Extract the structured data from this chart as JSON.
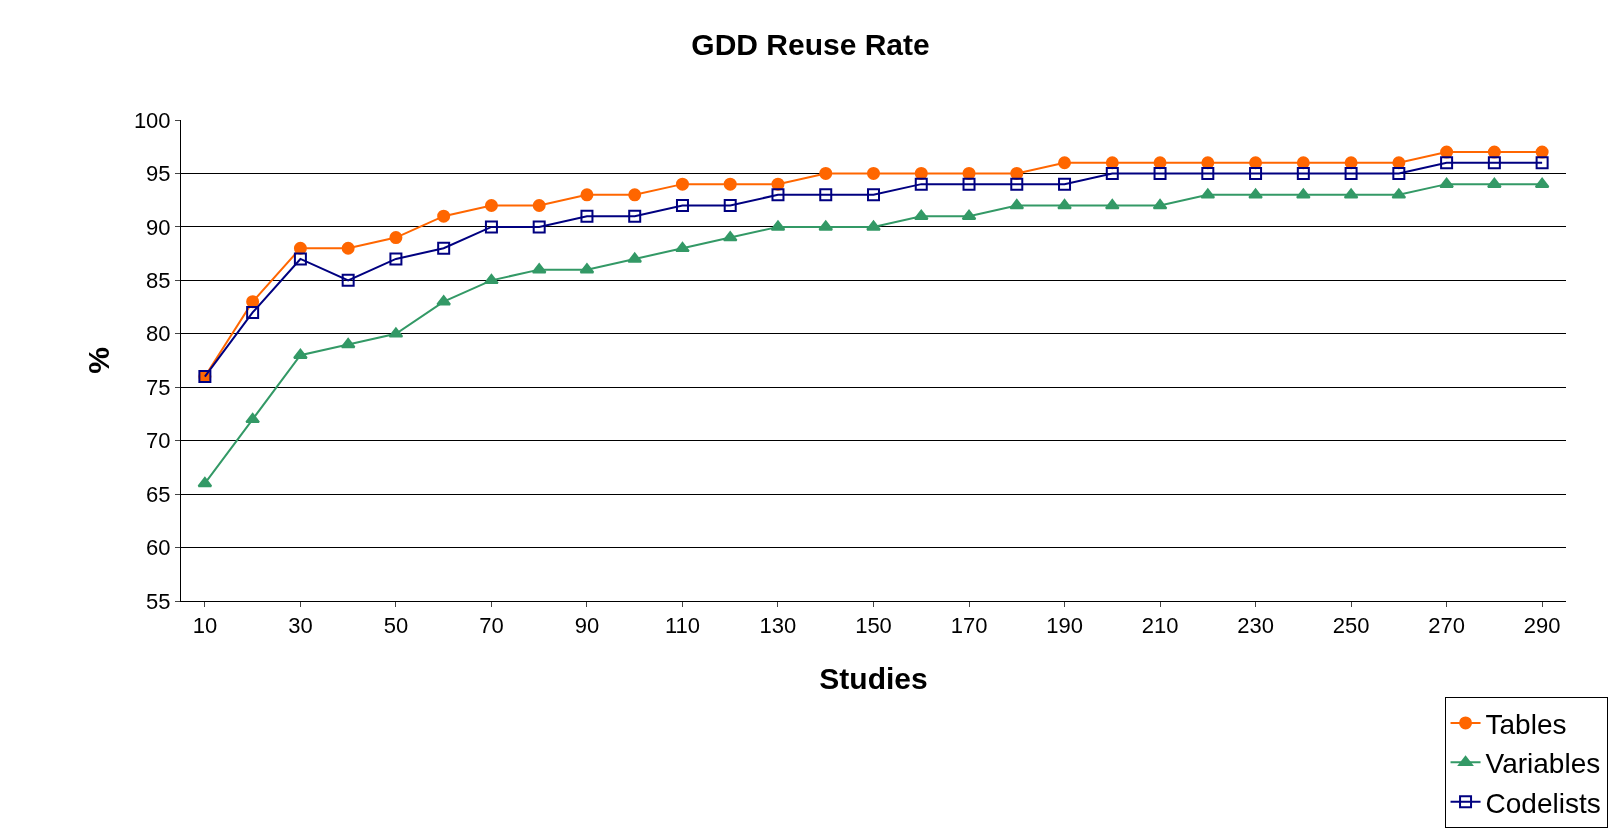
{
  "chart_data": {
    "type": "line",
    "title": "GDD Reuse Rate",
    "xlabel": "Studies",
    "ylabel": "%",
    "categories": [
      "10",
      null,
      "30",
      null,
      "50",
      null,
      "70",
      null,
      "90",
      null,
      "110",
      null,
      "130",
      null,
      "150",
      null,
      "170",
      null,
      "190",
      null,
      "210",
      null,
      "230",
      null,
      "250",
      null,
      "270",
      null,
      "290"
    ],
    "series": [
      {
        "name": "Tables",
        "color": "#ff6600",
        "marker": "circle",
        "values": [
          76,
          83,
          88,
          88,
          89,
          91,
          92,
          92,
          93,
          93,
          94,
          94,
          94,
          95,
          95,
          95,
          95,
          95,
          96,
          96,
          96,
          96,
          96,
          96,
          96,
          96,
          97,
          97,
          97
        ]
      },
      {
        "name": "Variables",
        "color": "#339966",
        "marker": "triangle",
        "values": [
          66,
          72,
          78,
          79,
          80,
          83,
          85,
          86,
          86,
          87,
          88,
          89,
          90,
          90,
          90,
          91,
          91,
          92,
          92,
          92,
          92,
          93,
          93,
          93,
          93,
          93,
          94,
          94,
          94
        ]
      },
      {
        "name": "Codelists",
        "color": "#000080",
        "marker": "square",
        "values": [
          76,
          82,
          87,
          85,
          87,
          88,
          90,
          90,
          91,
          91,
          92,
          92,
          93,
          93,
          93,
          94,
          94,
          94,
          94,
          95,
          95,
          95,
          95,
          95,
          95,
          95,
          96,
          96,
          96
        ]
      }
    ],
    "ylim": [
      55,
      100
    ],
    "yticks": [
      55,
      60,
      65,
      70,
      75,
      80,
      85,
      90,
      95,
      100
    ],
    "grid": "y",
    "legend": "bottom right",
    "line_style": "solid"
  }
}
